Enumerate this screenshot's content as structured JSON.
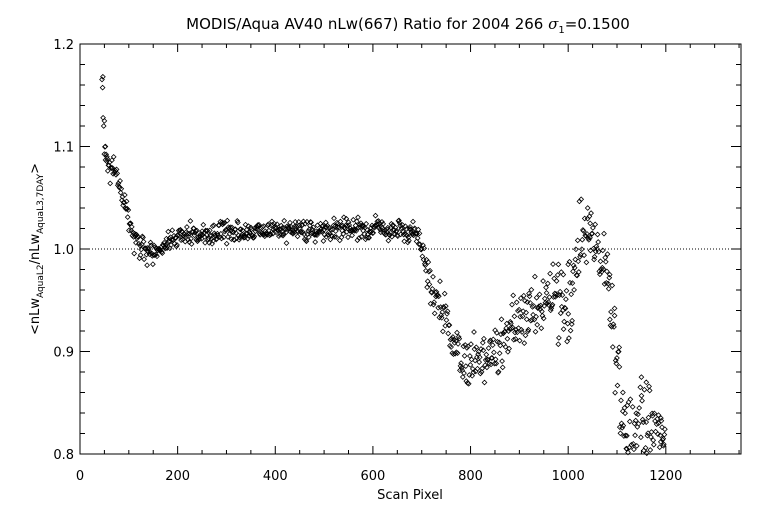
{
  "chart_data": {
    "type": "scatter",
    "title_main": "MODIS/Aqua AV40 nLw(667) Ratio for 2004 266 ",
    "title_sigma": "σ",
    "title_sigma_sub": "1",
    "title_value": "=0.1500",
    "xlabel": "Scan Pixel",
    "ylabel": {
      "open": "<nLw",
      "sub1": "AquaL2",
      "slash": "/nLw",
      "sub2": "AquaL3,7DAY",
      "close": ">"
    },
    "xlim": [
      0,
      1354
    ],
    "ylim": [
      0.8,
      1.2
    ],
    "xticks": [
      0,
      200,
      400,
      600,
      800,
      1000,
      1200
    ],
    "xtick_labels": [
      "0",
      "200",
      "400",
      "600",
      "800",
      "1000",
      "1200"
    ],
    "yticks": [
      0.8,
      0.9,
      1.0,
      1.1,
      1.2
    ],
    "ytick_labels": [
      "0.8",
      "0.9",
      "1.0",
      "1.1",
      "1.2"
    ],
    "reference_line": {
      "y": 1.0,
      "style": "dotted"
    },
    "marker": "diamond",
    "grid": false,
    "trend": [
      [
        45,
        1.165
      ],
      [
        50,
        1.1
      ],
      [
        55,
        1.085
      ],
      [
        60,
        1.078
      ],
      [
        70,
        1.075
      ],
      [
        80,
        1.065
      ],
      [
        90,
        1.045
      ],
      [
        100,
        1.03
      ],
      [
        110,
        1.012
      ],
      [
        120,
        1.005
      ],
      [
        130,
        1.0
      ],
      [
        140,
        0.998
      ],
      [
        150,
        0.995
      ],
      [
        160,
        0.998
      ],
      [
        170,
        1.002
      ],
      [
        180,
        1.006
      ],
      [
        190,
        1.01
      ],
      [
        200,
        1.012
      ],
      [
        220,
        1.014
      ],
      [
        250,
        1.015
      ],
      [
        300,
        1.016
      ],
      [
        350,
        1.018
      ],
      [
        400,
        1.018
      ],
      [
        450,
        1.019
      ],
      [
        500,
        1.019
      ],
      [
        550,
        1.02
      ],
      [
        600,
        1.02
      ],
      [
        650,
        1.018
      ],
      [
        680,
        1.015
      ],
      [
        690,
        1.01
      ],
      [
        700,
        1.0
      ],
      [
        710,
        0.98
      ],
      [
        720,
        0.965
      ],
      [
        730,
        0.95
      ],
      [
        740,
        0.94
      ],
      [
        750,
        0.93
      ],
      [
        760,
        0.915
      ],
      [
        770,
        0.9
      ],
      [
        780,
        0.885
      ],
      [
        790,
        0.89
      ],
      [
        800,
        0.895
      ],
      [
        820,
        0.893
      ],
      [
        840,
        0.895
      ],
      [
        860,
        0.905
      ],
      [
        880,
        0.92
      ],
      [
        900,
        0.928
      ],
      [
        920,
        0.935
      ],
      [
        940,
        0.945
      ],
      [
        960,
        0.955
      ],
      [
        970,
        0.96
      ],
      [
        980,
        0.955
      ],
      [
        990,
        0.95
      ],
      [
        1000,
        0.945
      ],
      [
        1010,
        0.96
      ],
      [
        1020,
        0.995
      ],
      [
        1030,
        1.015
      ],
      [
        1040,
        1.018
      ],
      [
        1050,
        1.01
      ],
      [
        1060,
        0.995
      ],
      [
        1070,
        0.98
      ],
      [
        1080,
        0.965
      ],
      [
        1090,
        0.93
      ],
      [
        1100,
        0.88
      ],
      [
        1110,
        0.845
      ],
      [
        1120,
        0.83
      ],
      [
        1130,
        0.825
      ],
      [
        1140,
        0.83
      ],
      [
        1150,
        0.835
      ],
      [
        1160,
        0.83
      ],
      [
        1170,
        0.82
      ],
      [
        1180,
        0.82
      ],
      [
        1190,
        0.815
      ],
      [
        1200,
        0.81
      ]
    ],
    "spread": [
      [
        45,
        0.006
      ],
      [
        90,
        0.006
      ],
      [
        140,
        0.006
      ],
      [
        200,
        0.005
      ],
      [
        700,
        0.005
      ],
      [
        720,
        0.01
      ],
      [
        760,
        0.012
      ],
      [
        800,
        0.012
      ],
      [
        900,
        0.014
      ],
      [
        1000,
        0.02
      ],
      [
        1040,
        0.014
      ],
      [
        1080,
        0.018
      ],
      [
        1120,
        0.02
      ],
      [
        1200,
        0.018
      ]
    ],
    "x_step": 1.2,
    "highlight_points": [
      [
        47,
        1.168
      ],
      [
        50,
        1.125
      ],
      [
        52,
        1.1
      ],
      [
        55,
        1.09
      ],
      [
        980,
        0.985
      ],
      [
        990,
        0.975
      ],
      [
        1000,
        0.985
      ],
      [
        1008,
        0.93
      ],
      [
        1040,
        1.04
      ],
      [
        1045,
        1.025
      ],
      [
        1085,
        0.975
      ],
      [
        1095,
        0.935
      ],
      [
        1105,
        0.885
      ],
      [
        1112,
        0.86
      ],
      [
        1150,
        0.875
      ],
      [
        1160,
        0.87
      ],
      [
        1185,
        0.838
      ],
      [
        1190,
        0.835
      ],
      [
        1195,
        0.808
      ],
      [
        1120,
        0.805
      ]
    ]
  }
}
